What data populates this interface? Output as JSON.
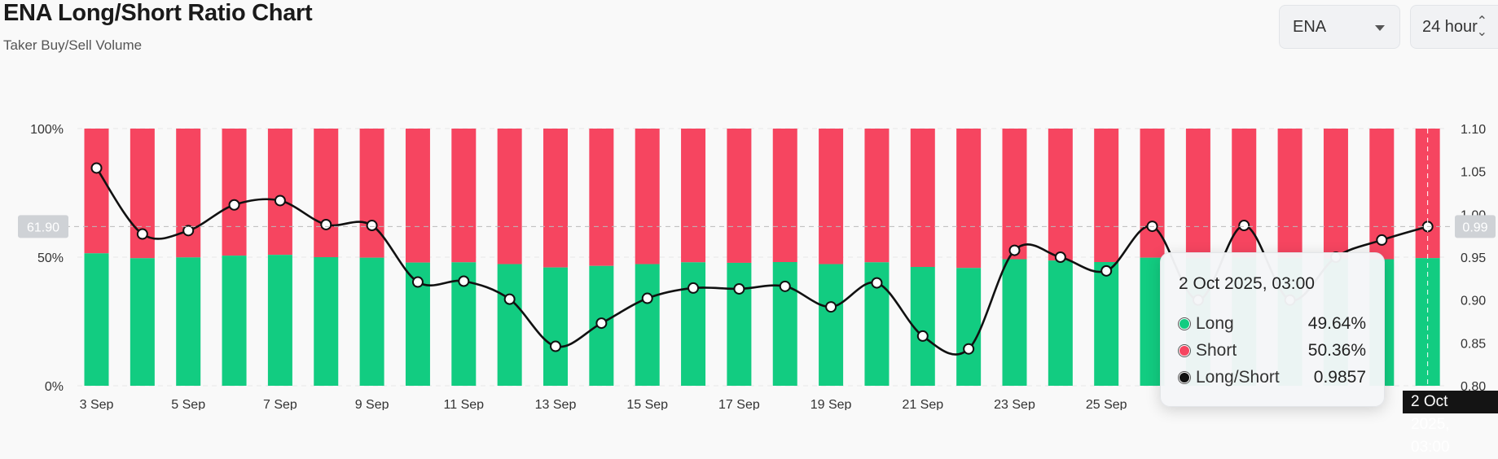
{
  "header": {
    "title": "ENA Long/Short Ratio Chart",
    "subtitle": "Taker Buy/Sell Volume"
  },
  "controls": {
    "asset_value": "ENA",
    "period_value": "24 hour",
    "asset_icon": "chevron-down-icon",
    "period_icon": "up-down-arrows-icon"
  },
  "colors": {
    "long": "#12cc81",
    "short": "#f64560",
    "ratio_line": "#111111",
    "crosshair": "#bbbbbb"
  },
  "crosshair": {
    "left_label": "61.90",
    "right_label": "0.99",
    "x_label": "2 Oct 2025, 03:00"
  },
  "tooltip": {
    "date": "2 Oct 2025, 03:00",
    "rows": [
      {
        "label": "Long",
        "value": "49.64%"
      },
      {
        "label": "Short",
        "value": "50.36%"
      },
      {
        "label": "Long/Short",
        "value": "0.9857"
      }
    ]
  },
  "chart_data": {
    "type": "bar",
    "title": "ENA Long/Short Ratio Chart",
    "subtitle": "Taker Buy/Sell Volume",
    "x_tick_labels": [
      "3 Sep",
      "5 Sep",
      "7 Sep",
      "9 Sep",
      "11 Sep",
      "13 Sep",
      "15 Sep",
      "17 Sep",
      "19 Sep",
      "21 Sep",
      "23 Sep",
      "25 Sep"
    ],
    "categories": [
      "3 Sep",
      "4 Sep",
      "5 Sep",
      "6 Sep",
      "7 Sep",
      "8 Sep",
      "9 Sep",
      "10 Sep",
      "11 Sep",
      "12 Sep",
      "13 Sep",
      "14 Sep",
      "15 Sep",
      "16 Sep",
      "17 Sep",
      "18 Sep",
      "19 Sep",
      "20 Sep",
      "21 Sep",
      "22 Sep",
      "23 Sep",
      "24 Sep",
      "25 Sep",
      "26 Sep",
      "27 Sep",
      "28 Sep",
      "29 Sep",
      "30 Sep",
      "1 Oct",
      "2 Oct"
    ],
    "left_axis": {
      "ticks": [
        "0%",
        "50%",
        "100%"
      ],
      "ylim": [
        0,
        100
      ]
    },
    "right_axis": {
      "ticks": [
        "0.80",
        "0.85",
        "0.90",
        "0.95",
        "1.00",
        "1.05",
        "1.10"
      ],
      "ylim": [
        0.8,
        1.1
      ]
    },
    "series": [
      {
        "name": "Long",
        "axis": "left",
        "kind": "stacked-bar",
        "values": [
          51.5,
          49.6,
          49.9,
          50.6,
          50.9,
          50.0,
          49.8,
          47.9,
          48.0,
          47.3,
          46.0,
          46.6,
          47.3,
          48.0,
          47.8,
          48.1,
          47.3,
          48.0,
          46.2,
          45.8,
          49.2,
          48.7,
          48.1,
          49.8,
          49.7,
          49.9,
          49.8,
          49.5,
          49.2,
          49.64
        ]
      },
      {
        "name": "Short",
        "axis": "left",
        "kind": "stacked-bar",
        "values": [
          48.5,
          50.4,
          50.1,
          49.4,
          49.1,
          50.0,
          50.2,
          52.1,
          52.0,
          52.7,
          54.0,
          53.4,
          52.7,
          52.0,
          52.2,
          51.9,
          52.7,
          52.0,
          53.8,
          54.2,
          50.8,
          51.3,
          51.9,
          50.2,
          50.3,
          50.1,
          50.2,
          50.5,
          50.8,
          50.36
        ]
      },
      {
        "name": "Long/Short",
        "axis": "right",
        "kind": "line",
        "values": [
          1.054,
          0.977,
          0.981,
          1.011,
          1.016,
          0.988,
          0.987,
          0.921,
          0.922,
          0.901,
          0.846,
          0.873,
          0.902,
          0.914,
          0.913,
          0.916,
          0.892,
          0.92,
          0.858,
          0.843,
          0.958,
          0.95,
          0.934,
          0.986,
          0.9,
          0.987,
          0.9,
          0.95,
          0.97,
          0.9857
        ]
      }
    ],
    "grid": true,
    "legend": "tooltip"
  }
}
